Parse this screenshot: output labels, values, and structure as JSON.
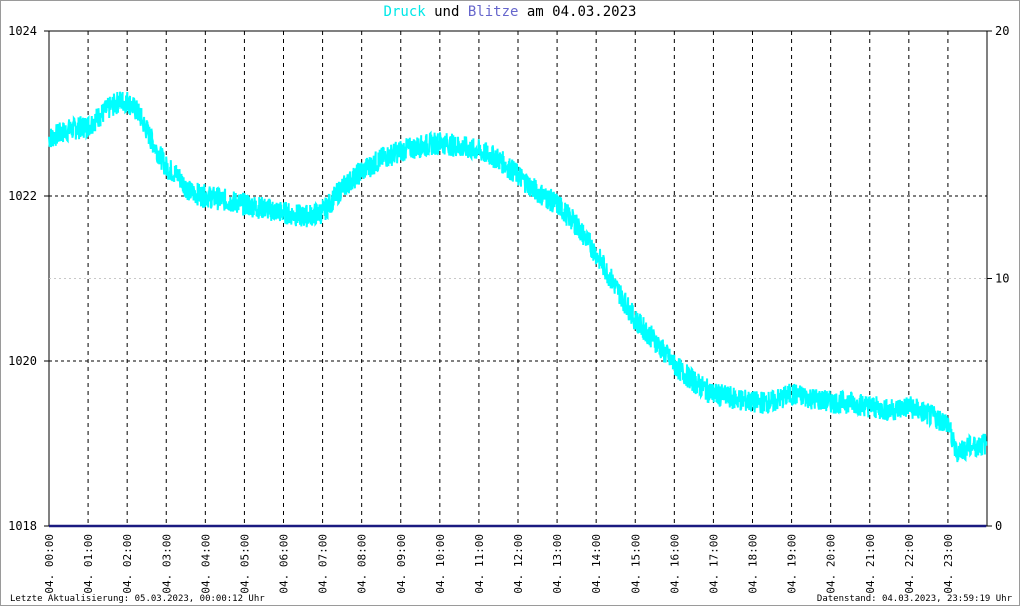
{
  "title": {
    "part1": "Druck",
    "part2": " und ",
    "part3": "Blitze",
    "part4": " am 04.03.2023",
    "color1": "#00e8e8",
    "color3": "#6666cc"
  },
  "footer": {
    "left": "Letzte Aktualisierung: 05.03.2023, 00:00:12 Uhr",
    "right": "Datenstand: 04.03.2023, 23:59:19 Uhr"
  },
  "chart_data": {
    "type": "line",
    "title": "Druck und Blitze am 04.03.2023",
    "xlabel": "",
    "ylabel": "",
    "ylim": [
      1018,
      1024
    ],
    "y2lim": [
      0,
      20
    ],
    "y_ticks": [
      "1018",
      "1020",
      "1022",
      "1024"
    ],
    "y2_ticks": [
      "0",
      "10",
      "20"
    ],
    "x_ticks": [
      "04. 00:00",
      "04. 01:00",
      "04. 02:00",
      "04. 03:00",
      "04. 04:00",
      "04. 05:00",
      "04. 06:00",
      "04. 07:00",
      "04. 08:00",
      "04. 09:00",
      "04. 10:00",
      "04. 11:00",
      "04. 12:00",
      "04. 13:00",
      "04. 14:00",
      "04. 15:00",
      "04. 16:00",
      "04. 17:00",
      "04. 18:00",
      "04. 19:00",
      "04. 20:00",
      "04. 21:00",
      "04. 22:00",
      "04. 23:00"
    ],
    "grid": true,
    "series": [
      {
        "name": "Druck",
        "color": "#00ffff",
        "axis": "left",
        "x_hours": [
          0,
          0.5,
          1,
          1.5,
          1.8,
          2,
          2.3,
          2.6,
          3,
          3.3,
          3.6,
          4,
          4.5,
          5,
          5.5,
          6,
          6.5,
          7,
          7.5,
          8,
          8.5,
          9,
          9.5,
          10,
          10.5,
          11,
          11.5,
          12,
          12.5,
          13,
          13.5,
          14,
          14.5,
          15,
          15.5,
          16,
          16.5,
          17,
          17.5,
          18,
          18.5,
          19,
          19.5,
          20,
          20.5,
          21,
          21.5,
          22,
          22.5,
          23,
          23.2,
          23.5,
          23.98
        ],
        "values": [
          1022.7,
          1022.8,
          1022.85,
          1023.05,
          1023.15,
          1023.15,
          1023.0,
          1022.7,
          1022.35,
          1022.25,
          1022.05,
          1022.0,
          1021.95,
          1021.9,
          1021.85,
          1021.8,
          1021.75,
          1021.8,
          1022.1,
          1022.3,
          1022.45,
          1022.55,
          1022.6,
          1022.65,
          1022.6,
          1022.55,
          1022.45,
          1022.25,
          1022.05,
          1021.9,
          1021.65,
          1021.3,
          1020.9,
          1020.5,
          1020.25,
          1019.95,
          1019.75,
          1019.6,
          1019.55,
          1019.5,
          1019.5,
          1019.6,
          1019.55,
          1019.5,
          1019.5,
          1019.45,
          1019.4,
          1019.45,
          1019.35,
          1019.25,
          1018.9,
          1018.95,
          1019.0
        ]
      },
      {
        "name": "Blitze",
        "color": "#1a1a80",
        "axis": "right",
        "x_hours": [
          0,
          23.98
        ],
        "values": [
          0,
          0
        ]
      }
    ]
  }
}
